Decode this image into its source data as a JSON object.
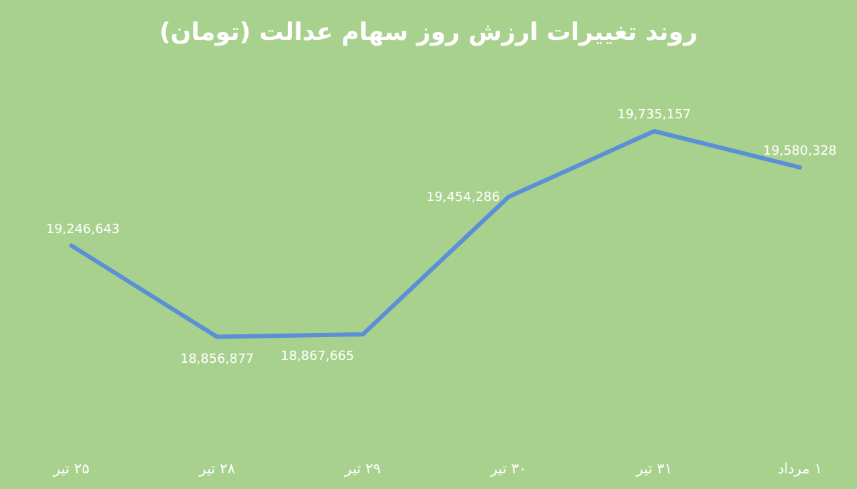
{
  "chart_data": {
    "type": "line",
    "title": "روند تغییرات ارزش روز سهام عدالت (تومان)",
    "categories": [
      "۲۵ تیر",
      "۲۸ تیر",
      "۲۹ تیر",
      "۳۰ تیر",
      "۳۱ تیر",
      "۱ مرداد"
    ],
    "series": [
      {
        "color": "#5b8fd6",
        "values": [
          19246643,
          18856877,
          18867665,
          19454286,
          19735157,
          19580328
        ],
        "value_labels": [
          "19,246,643",
          "18,856,877",
          "18,867,665",
          "19,454,286",
          "19,735,157",
          "19,580,328"
        ]
      }
    ],
    "marker": "none",
    "line_style": "solid"
  }
}
